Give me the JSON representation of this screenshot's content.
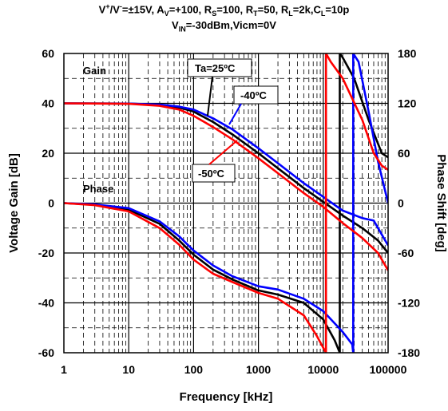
{
  "title": {
    "line1": [
      {
        "t": "V",
        "s": "n"
      },
      {
        "t": "+",
        "s": "sup"
      },
      {
        "t": "/V",
        "s": "n"
      },
      {
        "t": "-",
        "s": "sup"
      },
      {
        "t": "=±15V, A",
        "s": "n"
      },
      {
        "t": "V",
        "s": "sub"
      },
      {
        "t": "=+100, R",
        "s": "n"
      },
      {
        "t": "S",
        "s": "sub"
      },
      {
        "t": "=100, R",
        "s": "n"
      },
      {
        "t": "T",
        "s": "sub"
      },
      {
        "t": "=50, R",
        "s": "n"
      },
      {
        "t": "L",
        "s": "sub"
      },
      {
        "t": "=2k,C",
        "s": "n"
      },
      {
        "t": "L",
        "s": "sub"
      },
      {
        "t": "=10p",
        "s": "n"
      }
    ],
    "line2": [
      {
        "t": "V",
        "s": "n"
      },
      {
        "t": "IN",
        "s": "sub"
      },
      {
        "t": "=-30dBm,Vicm=0V",
        "s": "n"
      }
    ]
  },
  "chart_data": {
    "type": "line",
    "x_scale": "log",
    "xlabel": "Frequency [kHz]",
    "ylabel": "Voltage Gain [dB]",
    "y2label": "Phase Shift [deg]",
    "xlim": [
      1,
      100000
    ],
    "ylim": [
      -60,
      60
    ],
    "y2lim": [
      -180,
      180
    ],
    "x_ticks": [
      "1",
      "10",
      "100",
      "1000",
      "10000",
      "100000"
    ],
    "y_ticks": [
      "60",
      "40",
      "20",
      "0",
      "-20",
      "-40",
      "-60"
    ],
    "y2_ticks": [
      "180",
      "120",
      "60",
      "0",
      "-60",
      "-120",
      "-180"
    ],
    "grid": true,
    "annotations": {
      "gain": "Gain",
      "phase": "Phase",
      "ta25": "Ta=25ºC",
      "m40": "-40ºC",
      "m50": "-50ºC"
    },
    "series": [
      {
        "name": "Ta=25ºC",
        "color": "#000000",
        "gain": {
          "x": [
            1,
            10,
            30,
            60,
            100,
            200,
            400,
            1000,
            2000,
            5000,
            10000,
            20000,
            40000,
            70000,
            100000
          ],
          "y": [
            40,
            39.9,
            39.4,
            38.3,
            36.7,
            32.5,
            27.5,
            20,
            14,
            6,
            0.5,
            -5,
            -10,
            -15,
            -20
          ]
        },
        "phase_deg": {
          "x": [
            1,
            3,
            10,
            30,
            60,
            100,
            200,
            400,
            1000,
            2000,
            5000,
            10000,
            15000,
            18000,
            18001,
            20000,
            30000,
            50000,
            80000,
            100000
          ],
          "y": [
            0,
            -2,
            -8,
            -25,
            -45,
            -62,
            -80,
            -92,
            -105,
            -110,
            -120,
            -140,
            -165,
            -180,
            180,
            175,
            150,
            100,
            60,
            55
          ]
        }
      },
      {
        "name": "-40ºC",
        "color": "#0000FF",
        "gain": {
          "x": [
            1,
            10,
            30,
            60,
            100,
            200,
            400,
            1000,
            2000,
            5000,
            10000,
            20000,
            40000,
            60000,
            70000,
            100000
          ],
          "y": [
            40,
            39.9,
            39.5,
            38.7,
            37.5,
            34,
            29.5,
            22,
            16,
            8,
            2.5,
            -3,
            -6,
            -7,
            -10,
            -17
          ]
        },
        "phase_deg": {
          "x": [
            1,
            3,
            10,
            30,
            60,
            100,
            200,
            400,
            1000,
            2000,
            5000,
            10000,
            20000,
            28000,
            29000,
            29001,
            35000,
            50000,
            70000,
            100000
          ],
          "y": [
            0,
            -1.5,
            -6,
            -22,
            -40,
            -57,
            -75,
            -88,
            -100,
            -104,
            -115,
            -130,
            -155,
            -170,
            -180,
            180,
            170,
            110,
            50,
            0
          ]
        }
      },
      {
        "name": "-50ºC",
        "color": "#FF0000",
        "gain": {
          "x": [
            1,
            10,
            30,
            60,
            100,
            200,
            400,
            1000,
            2000,
            5000,
            10000,
            20000,
            40000,
            70000,
            100000
          ],
          "y": [
            40,
            39.8,
            39,
            37.5,
            35,
            30.5,
            25.5,
            18,
            12,
            4,
            -1.5,
            -8,
            -14,
            -20,
            -27
          ]
        },
        "phase_deg": {
          "x": [
            1,
            3,
            10,
            30,
            60,
            100,
            200,
            400,
            1000,
            2000,
            5000,
            8000,
            11000,
            11001,
            13000,
            20000,
            40000,
            60000,
            80000,
            100000
          ],
          "y": [
            0,
            -2.5,
            -10,
            -30,
            -50,
            -68,
            -85,
            -95,
            -108,
            -115,
            -135,
            -160,
            -180,
            180,
            170,
            150,
            100,
            60,
            45,
            40
          ]
        }
      }
    ]
  }
}
